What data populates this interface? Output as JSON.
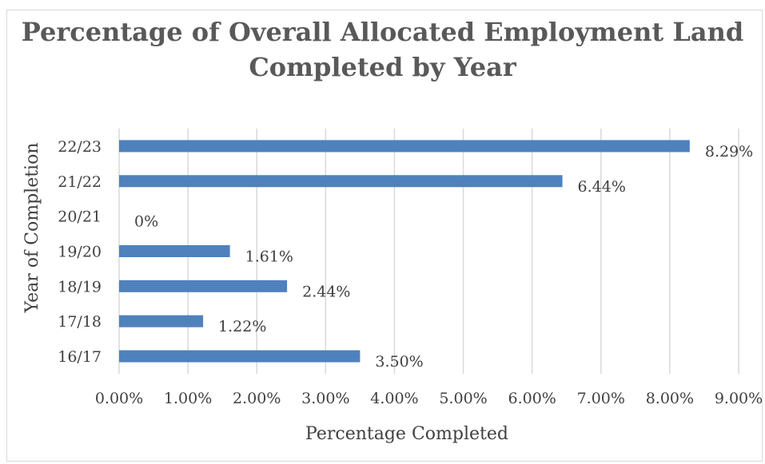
{
  "chart_data": {
    "type": "bar",
    "orientation": "horizontal",
    "title_lines": [
      "Percentage of Overall Allocated Employment Land",
      "Completed by Year"
    ],
    "xlabel": "Percentage Completed",
    "ylabel": "Year of Completion",
    "categories": [
      "16/17",
      "17/18",
      "18/19",
      "19/20",
      "20/21",
      "21/22",
      "22/23"
    ],
    "values": [
      3.5,
      1.22,
      2.44,
      1.61,
      0,
      6.44,
      8.29
    ],
    "data_labels": [
      "3.50%",
      "1.22%",
      "2.44%",
      "1.61%",
      "0%",
      "6.44%",
      "8.29%"
    ],
    "xlim": [
      0,
      9
    ],
    "x_ticks": [
      "0.00%",
      "1.00%",
      "2.00%",
      "3.00%",
      "4.00%",
      "5.00%",
      "6.00%",
      "7.00%",
      "8.00%",
      "9.00%"
    ],
    "grid": "vertical",
    "bar_color": "#4f81bd",
    "grid_color": "#d9d9d9"
  }
}
